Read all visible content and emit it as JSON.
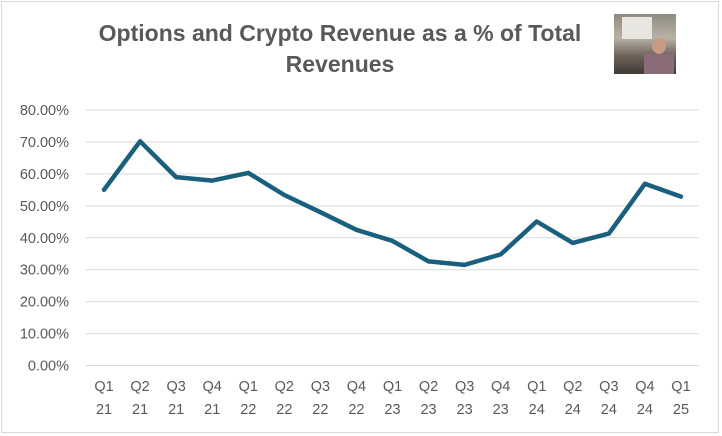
{
  "chart_data": {
    "type": "line",
    "title": "Options and Crypto Revenue as a % of Total Revenues",
    "title_lines": [
      "Options and Crypto Revenue as a % of Total",
      "Revenues"
    ],
    "categories": [
      [
        "Q1",
        "21"
      ],
      [
        "Q2",
        "21"
      ],
      [
        "Q3",
        "21"
      ],
      [
        "Q4",
        "21"
      ],
      [
        "Q1",
        "22"
      ],
      [
        "Q2",
        "22"
      ],
      [
        "Q3",
        "22"
      ],
      [
        "Q4",
        "22"
      ],
      [
        "Q1",
        "23"
      ],
      [
        "Q2",
        "23"
      ],
      [
        "Q3",
        "23"
      ],
      [
        "Q4",
        "23"
      ],
      [
        "Q1",
        "24"
      ],
      [
        "Q2",
        "24"
      ],
      [
        "Q3",
        "24"
      ],
      [
        "Q4",
        "24"
      ],
      [
        "Q1",
        "25"
      ]
    ],
    "series": [
      {
        "name": "Options and Crypto Revenue %",
        "color": "#1b5f7e",
        "values": [
          55.0,
          70.2,
          59.0,
          57.9,
          60.3,
          53.4,
          48.0,
          42.5,
          39.0,
          32.6,
          31.5,
          34.8,
          45.1,
          38.4,
          41.3,
          56.9,
          52.9
        ]
      }
    ],
    "yticks": [
      "0.00%",
      "10.00%",
      "20.00%",
      "30.00%",
      "40.00%",
      "50.00%",
      "60.00%",
      "70.00%",
      "80.00%"
    ],
    "ylim": [
      0,
      80
    ],
    "xlabel": "",
    "ylabel": "",
    "grid": true,
    "legend": "none"
  }
}
